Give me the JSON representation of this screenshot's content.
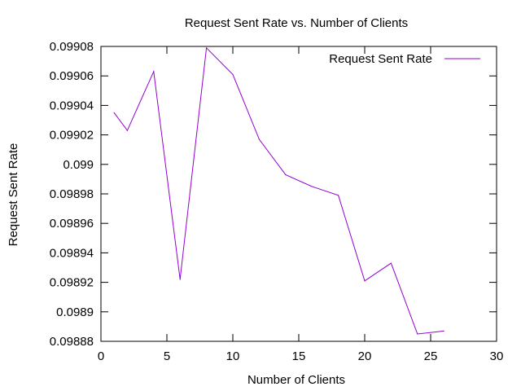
{
  "chart_data": {
    "type": "line",
    "title": "Request Sent Rate vs. Number of Clients",
    "xlabel": "Number of Clients",
    "ylabel": "Request Sent Rate",
    "xlim": [
      0,
      30
    ],
    "ylim": [
      0.09888,
      0.09908
    ],
    "x_ticks": [
      "0",
      "5",
      "10",
      "15",
      "20",
      "25",
      "30"
    ],
    "y_ticks": [
      "0.09888",
      "0.0989",
      "0.09892",
      "0.09894",
      "0.09896",
      "0.09898",
      "0.099",
      "0.09902",
      "0.09904",
      "0.09906",
      "0.09908"
    ],
    "grid": false,
    "legend_position": "top-right",
    "series": [
      {
        "name": "Request Sent Rate",
        "color": "#9400d3",
        "x": [
          1,
          2,
          4,
          6,
          8,
          10,
          12,
          14,
          16,
          18,
          20,
          22,
          24,
          26
        ],
        "y": [
          0.099035,
          0.099023,
          0.099063,
          0.098922,
          0.099079,
          0.099061,
          0.099017,
          0.098993,
          0.098985,
          0.098979,
          0.098921,
          0.098933,
          0.098885,
          0.098887
        ]
      }
    ]
  }
}
